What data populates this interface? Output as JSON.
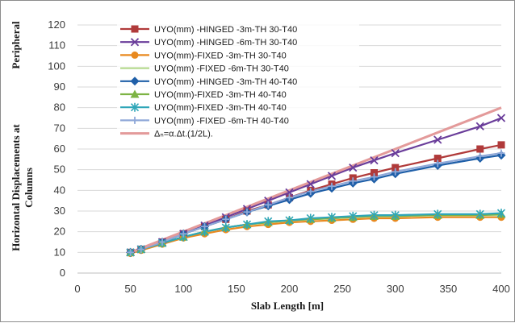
{
  "chart_data": {
    "type": "line",
    "xlabel": "Slab Length [m]",
    "ylabel_lines": [
      "Horizontal Displacements at",
      "Columns",
      "Peripheral"
    ],
    "xlim": [
      0,
      400
    ],
    "ylim": [
      0,
      120
    ],
    "xticks": [
      0,
      50,
      100,
      150,
      200,
      250,
      300,
      350,
      400
    ],
    "yticks": [
      0,
      10,
      20,
      30,
      40,
      50,
      60,
      70,
      80,
      90,
      100,
      110,
      120
    ],
    "grid": true,
    "legend_position": "top-left",
    "series": [
      {
        "name": "UYO(mm) -HINGED -3m-TH 30-T40",
        "color": "#b03a3a",
        "marker": "square",
        "x": [
          50,
          60,
          80,
          100,
          120,
          140,
          160,
          180,
          200,
          220,
          240,
          260,
          280,
          300,
          340,
          380,
          400
        ],
        "y": [
          10,
          11.5,
          15,
          19,
          22.5,
          26,
          30,
          33,
          36.5,
          40,
          43,
          46,
          48.5,
          51,
          55.5,
          60,
          62
        ]
      },
      {
        "name": "UYO(mm) -HINGED -6m-TH 30-T40",
        "color": "#6a3d9a",
        "marker": "x",
        "x": [
          50,
          60,
          80,
          100,
          120,
          140,
          160,
          180,
          200,
          220,
          240,
          260,
          280,
          300,
          340,
          380,
          400
        ],
        "y": [
          10,
          11.5,
          15,
          19,
          23,
          27,
          31,
          35,
          39,
          43,
          47,
          51,
          54.5,
          58,
          64.5,
          71,
          75
        ]
      },
      {
        "name": "UYO(mm)-FIXED -3m-TH 30-T40",
        "color": "#e8891f",
        "marker": "circle",
        "x": [
          50,
          60,
          80,
          100,
          120,
          140,
          160,
          180,
          200,
          220,
          240,
          260,
          280,
          300,
          340,
          380,
          400
        ],
        "y": [
          9.5,
          11,
          14,
          17,
          19,
          21,
          22.5,
          23.5,
          24.5,
          25,
          25.5,
          26,
          26.5,
          26.5,
          27,
          27,
          27
        ]
      },
      {
        "name": "UYO(mm) -FIXED -6m-TH 30-T40",
        "color": "#b5d98f",
        "marker": "none",
        "x": [
          50,
          60,
          80,
          100,
          120,
          140,
          160,
          180,
          200,
          220,
          240,
          260,
          280,
          300,
          340,
          380,
          400
        ],
        "y": [
          10,
          11.5,
          14.5,
          17.5,
          20,
          22,
          23.5,
          24.5,
          25.5,
          26,
          26.5,
          27,
          27.5,
          27.5,
          28,
          28,
          28
        ]
      },
      {
        "name": "UYO(mm) -HINGED -3m-TH 40-T40",
        "color": "#1f5fa8",
        "marker": "diamond",
        "x": [
          50,
          60,
          80,
          100,
          120,
          140,
          160,
          180,
          200,
          220,
          240,
          260,
          280,
          300,
          340,
          380,
          400
        ],
        "y": [
          10,
          11.5,
          15,
          19,
          22.5,
          26,
          29.5,
          32.5,
          35.5,
          38.5,
          41,
          43.5,
          45.5,
          48,
          52,
          55.5,
          57
        ]
      },
      {
        "name": "UYO(mm)-FIXED -3m-TH 40-T40",
        "color": "#7db344",
        "marker": "triangle",
        "x": [
          50,
          60,
          80,
          100,
          120,
          140,
          160,
          180,
          200,
          220,
          240,
          260,
          280,
          300,
          340,
          380,
          400
        ],
        "y": [
          10,
          11.5,
          14.5,
          17.5,
          20,
          22,
          23.5,
          24.5,
          25.5,
          26,
          26.5,
          27,
          27.5,
          27.5,
          28,
          28,
          28.5
        ]
      },
      {
        "name": "UYO(mm)-FIXED -3m-TH 40-T40",
        "color": "#2fa6b8",
        "marker": "star",
        "x": [
          50,
          60,
          80,
          100,
          120,
          140,
          160,
          180,
          200,
          220,
          240,
          260,
          280,
          300,
          340,
          380,
          400
        ],
        "y": [
          10,
          11.5,
          14.5,
          17.5,
          20,
          22,
          23.5,
          25,
          25.5,
          26.5,
          27,
          27.5,
          28,
          28,
          28.5,
          28.5,
          29
        ]
      },
      {
        "name": "UYO(mm) -FIXED -6m-TH 40-T40",
        "color": "#8fa8d8",
        "marker": "plus",
        "x": [
          50,
          60,
          80,
          100,
          120,
          140,
          160,
          180,
          200,
          220,
          240,
          260,
          280,
          300,
          340,
          380,
          400
        ],
        "y": [
          10,
          11.5,
          15,
          19,
          22.5,
          26,
          29.5,
          33,
          36.5,
          39.5,
          42,
          44.5,
          46.5,
          49,
          53,
          56.5,
          58
        ]
      },
      {
        "name": "Δₙ=α.Δt.(1/2L).",
        "color": "#e39a9a",
        "marker": "none",
        "linewidth": 3,
        "x": [
          50,
          400
        ],
        "y": [
          10,
          80
        ]
      }
    ]
  }
}
